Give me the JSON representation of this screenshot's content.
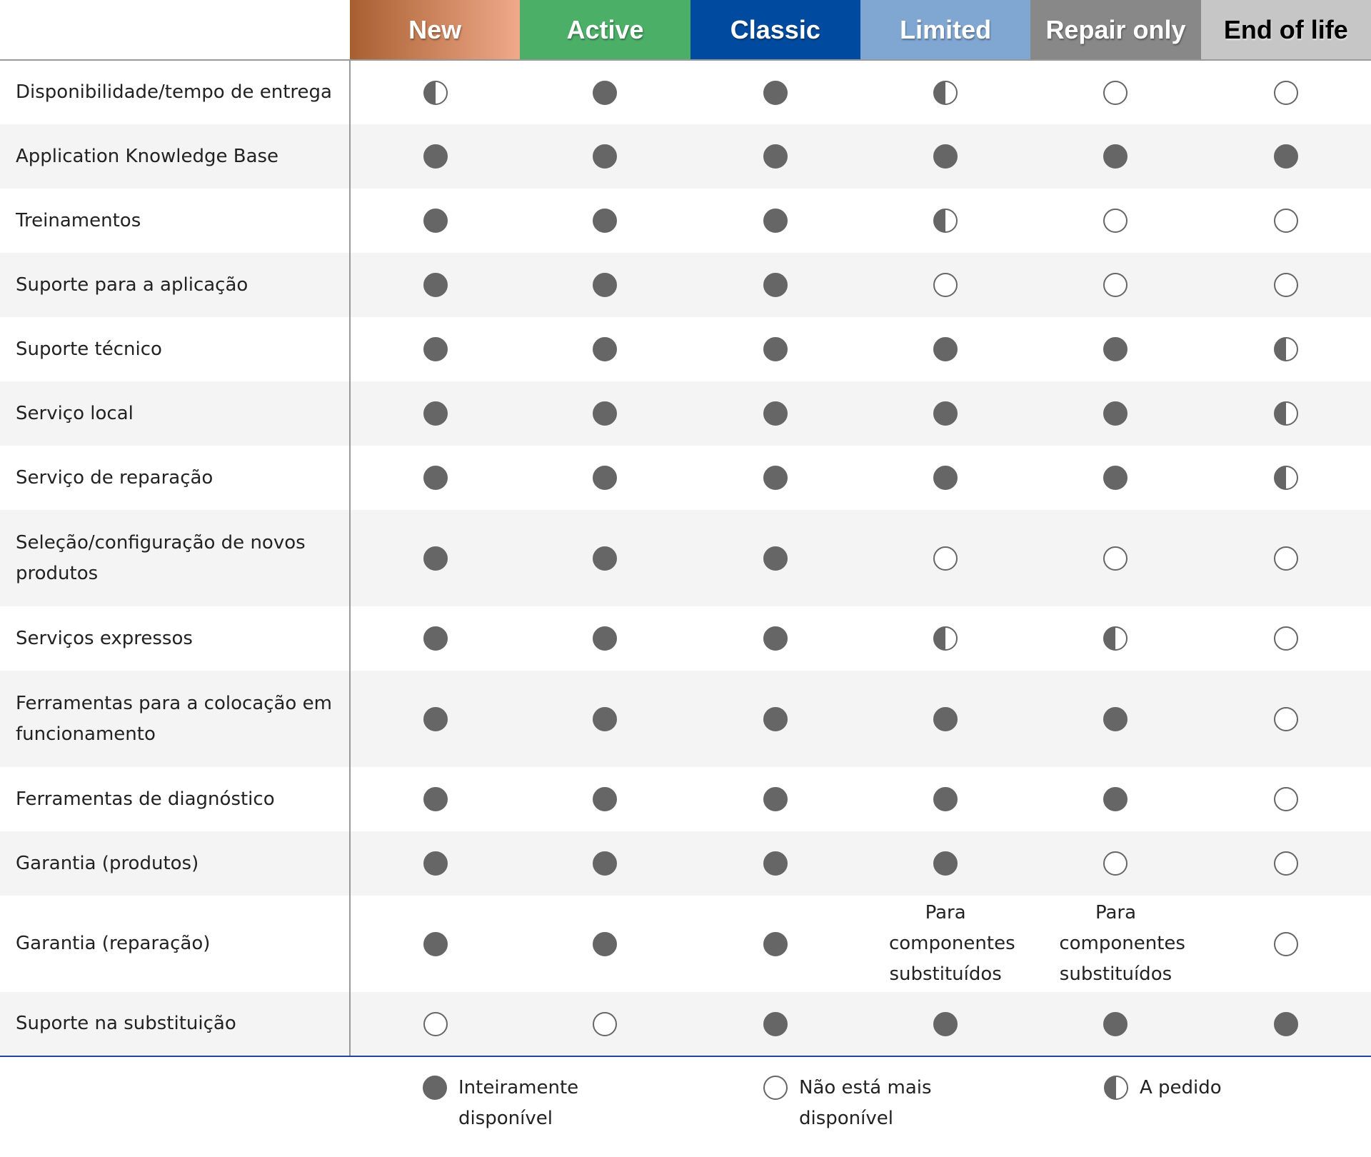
{
  "columns": [
    {
      "label": "New",
      "color": "linear-gradient(90deg,#a85f30,#f0a98a)",
      "text": "#fff"
    },
    {
      "label": "Active",
      "color": "#4caf68",
      "text": "#fff"
    },
    {
      "label": "Classic",
      "color": "#004b9f",
      "text": "#fff"
    },
    {
      "label": "Limited",
      "color": "#80a6d2",
      "text": "#fff"
    },
    {
      "label": "Repair only",
      "color": "#888888",
      "text": "#fff"
    },
    {
      "label": "End of life",
      "color": "#c6c6c6",
      "text": "#000"
    }
  ],
  "rows": [
    {
      "label": "Disponibilidade/tempo de entrega",
      "values": [
        "H",
        "F",
        "F",
        "H",
        "E",
        "E"
      ]
    },
    {
      "label": "Application Knowledge Base",
      "values": [
        "F",
        "F",
        "F",
        "F",
        "F",
        "F"
      ]
    },
    {
      "label": "Treinamentos",
      "values": [
        "F",
        "F",
        "F",
        "H",
        "E",
        "E"
      ]
    },
    {
      "label": "Suporte para a aplicação",
      "values": [
        "F",
        "F",
        "F",
        "E",
        "E",
        "E"
      ]
    },
    {
      "label": "Suporte técnico",
      "values": [
        "F",
        "F",
        "F",
        "F",
        "F",
        "H"
      ]
    },
    {
      "label": "Serviço local",
      "values": [
        "F",
        "F",
        "F",
        "F",
        "F",
        "H"
      ]
    },
    {
      "label": "Serviço de reparação",
      "values": [
        "F",
        "F",
        "F",
        "F",
        "F",
        "H"
      ]
    },
    {
      "label": "Seleção/configuração de novos produtos",
      "values": [
        "F",
        "F",
        "F",
        "E",
        "E",
        "E"
      ],
      "tall": true
    },
    {
      "label": "Serviços expressos",
      "values": [
        "F",
        "F",
        "F",
        "H",
        "H",
        "E"
      ]
    },
    {
      "label": "Ferramentas para a colocação em funcionamento",
      "values": [
        "F",
        "F",
        "F",
        "F",
        "F",
        "E"
      ],
      "tall": true
    },
    {
      "label": "Ferramentas de diagnóstico",
      "values": [
        "F",
        "F",
        "F",
        "F",
        "F",
        "E"
      ]
    },
    {
      "label": "Garantia (produtos)",
      "values": [
        "F",
        "F",
        "F",
        "F",
        "E",
        "E"
      ]
    },
    {
      "label": "Garantia (reparação)",
      "values": [
        "F",
        "F",
        "F",
        "Para componentes substituídos",
        "Para componentes substituídos",
        "E"
      ],
      "tall": true
    },
    {
      "label": "Suporte na substituição",
      "values": [
        "E",
        "E",
        "F",
        "F",
        "F",
        "F"
      ]
    }
  ],
  "legend": [
    {
      "symbol": "F",
      "label": "Inteiramente disponível"
    },
    {
      "symbol": "E",
      "label": "Não está mais disponível"
    },
    {
      "symbol": "H",
      "label": "A pedido"
    }
  ]
}
